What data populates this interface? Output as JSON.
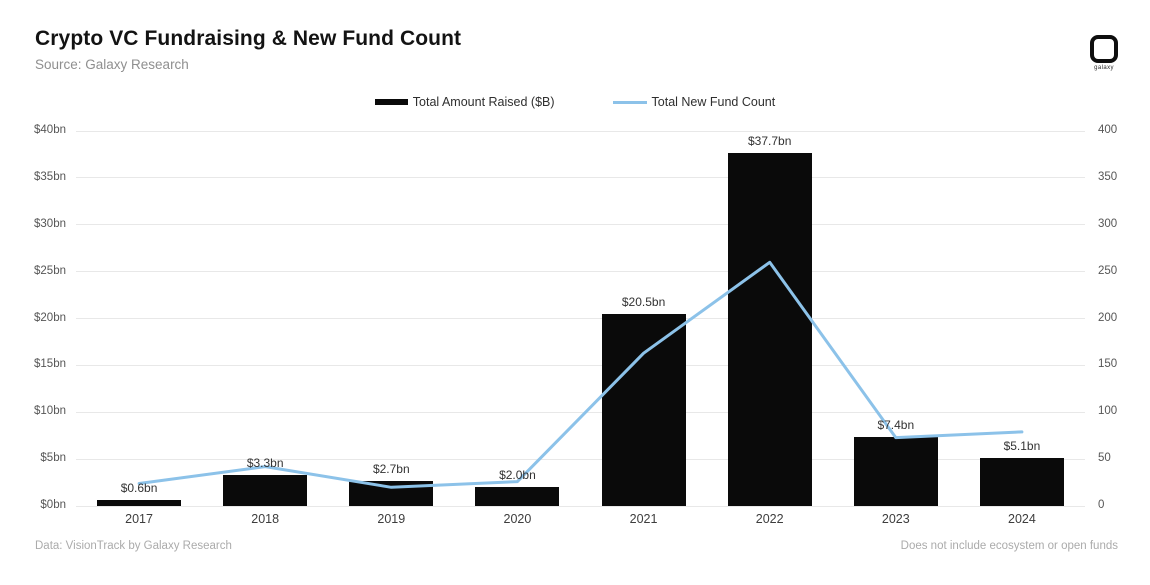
{
  "header": {
    "title": "Crypto VC Fundraising & New Fund Count",
    "source": "Source: Galaxy Research",
    "logo_label": "galaxy"
  },
  "legend": [
    {
      "label": "Total Amount Raised ($B)",
      "color": "#0a0a0a",
      "marker": "bar"
    },
    {
      "label": "Total New Fund Count",
      "color": "#8cc2e9",
      "marker": "line"
    }
  ],
  "footer": {
    "left": "Data: VisionTrack by Galaxy Research",
    "right": "Does not include ecosystem or open funds"
  },
  "chart_data": {
    "type": "bar",
    "title": "Crypto VC Fundraising & New Fund Count",
    "categories": [
      "2017",
      "2018",
      "2019",
      "2020",
      "2021",
      "2022",
      "2023",
      "2024"
    ],
    "series": [
      {
        "name": "Total Amount Raised ($B)",
        "type": "bar",
        "axis": "left",
        "values": [
          0.6,
          3.3,
          2.7,
          2.0,
          20.5,
          37.7,
          7.4,
          5.1
        ],
        "labels": [
          "$0.6bn",
          "$3.3bn",
          "$2.7bn",
          "$2.0bn",
          "$20.5bn",
          "$37.7bn",
          "$7.4bn",
          "$5.1bn"
        ],
        "color": "#0a0a0a"
      },
      {
        "name": "Total New Fund Count",
        "type": "line",
        "axis": "right",
        "values": [
          24,
          42,
          20,
          26,
          163,
          260,
          73,
          79
        ],
        "color": "#8cc2e9"
      }
    ],
    "left_axis": {
      "ticks": [
        "$0bn",
        "$5bn",
        "$10bn",
        "$15bn",
        "$20bn",
        "$25bn",
        "$30bn",
        "$35bn",
        "$40bn"
      ],
      "min": 0,
      "max": 40
    },
    "right_axis": {
      "ticks": [
        "0",
        "50",
        "100",
        "150",
        "200",
        "250",
        "300",
        "350",
        "400"
      ],
      "min": 0,
      "max": 400
    },
    "grid": "horizontal",
    "grid_color": "#e8e8e8",
    "legend_position": "top-center"
  }
}
